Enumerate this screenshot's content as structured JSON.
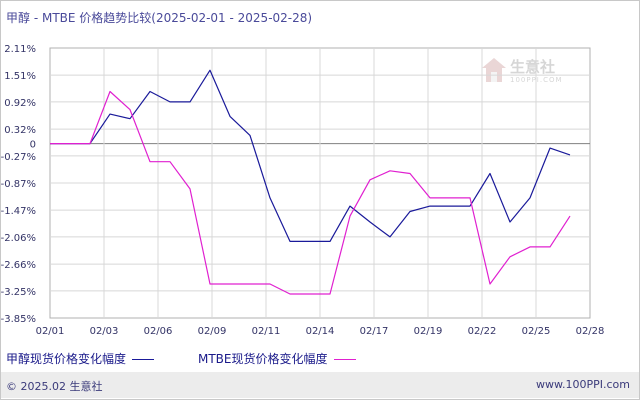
{
  "title": "甲醇 - MTBE 价格趋势比较(2025-02-01 - 2025-02-28)",
  "footer": {
    "copyright": "© 2025.02 生意社",
    "site": "www.100PPI.com"
  },
  "watermark": {
    "brand": "生意社",
    "sub": "100PPI.COM"
  },
  "colors": {
    "series1": "#1a1a9a",
    "series2": "#e020d0",
    "grid": "#d8d8d8",
    "axis_text": "#333366"
  },
  "chart_data": {
    "type": "line",
    "title": "甲醇 - MTBE 价格趋势比较(2025-02-01 - 2025-02-28)",
    "xlabel": "",
    "ylabel": "",
    "x_tick_labels": [
      "02/01",
      "02/03",
      "02/06",
      "02/09",
      "02/11",
      "02/14",
      "02/17",
      "02/19",
      "02/22",
      "02/25",
      "02/28"
    ],
    "y_tick_labels": [
      "2.11%",
      "1.51%",
      "0.92%",
      "0.32%",
      "0",
      "-0.27%",
      "-0.87%",
      "-1.47%",
      "-2.06%",
      "-2.66%",
      "-3.25%",
      "-3.85%"
    ],
    "y_tick_values": [
      2.11,
      1.51,
      0.92,
      0.32,
      0,
      -0.27,
      -0.87,
      -1.47,
      -2.06,
      -2.66,
      -3.25,
      -3.85
    ],
    "ylim": [
      -3.85,
      2.11
    ],
    "x_range_days": [
      1,
      28
    ],
    "grid": true,
    "legend_position": "bottom-left",
    "series": [
      {
        "name": "甲醇现货价格变化幅度",
        "points": [
          {
            "day": 1,
            "value": 0
          },
          {
            "day": 2,
            "value": 0
          },
          {
            "day": 3,
            "value": 0
          },
          {
            "day": 4,
            "value": 0.65
          },
          {
            "day": 5,
            "value": 0.55
          },
          {
            "day": 6,
            "value": 1.15
          },
          {
            "day": 7,
            "value": 0.92
          },
          {
            "day": 8,
            "value": 0.92
          },
          {
            "day": 9,
            "value": 1.62
          },
          {
            "day": 10,
            "value": 0.6
          },
          {
            "day": 11,
            "value": 0.18
          },
          {
            "day": 12,
            "value": -1.2
          },
          {
            "day": 13,
            "value": -2.16
          },
          {
            "day": 14,
            "value": -2.16
          },
          {
            "day": 15,
            "value": -2.16
          },
          {
            "day": 16,
            "value": -1.38
          },
          {
            "day": 17,
            "value": -1.73
          },
          {
            "day": 18,
            "value": -2.06
          },
          {
            "day": 19,
            "value": -1.5
          },
          {
            "day": 20,
            "value": -1.38
          },
          {
            "day": 21,
            "value": -1.38
          },
          {
            "day": 22,
            "value": -1.38
          },
          {
            "day": 23,
            "value": -0.66
          },
          {
            "day": 24,
            "value": -1.73
          },
          {
            "day": 25,
            "value": -1.2
          },
          {
            "day": 26,
            "value": -0.1
          },
          {
            "day": 27,
            "value": -0.25
          }
        ]
      },
      {
        "name": "MTBE现货价格变化幅度",
        "points": [
          {
            "day": 1,
            "value": 0
          },
          {
            "day": 2,
            "value": 0
          },
          {
            "day": 3,
            "value": 0
          },
          {
            "day": 4,
            "value": 1.15
          },
          {
            "day": 5,
            "value": 0.75
          },
          {
            "day": 6,
            "value": -0.4
          },
          {
            "day": 7,
            "value": -0.4
          },
          {
            "day": 8,
            "value": -1.0
          },
          {
            "day": 9,
            "value": -3.1
          },
          {
            "day": 10,
            "value": -3.1
          },
          {
            "day": 11,
            "value": -3.1
          },
          {
            "day": 12,
            "value": -3.1
          },
          {
            "day": 13,
            "value": -3.32
          },
          {
            "day": 14,
            "value": -3.32
          },
          {
            "day": 15,
            "value": -3.32
          },
          {
            "day": 16,
            "value": -1.6
          },
          {
            "day": 17,
            "value": -0.8
          },
          {
            "day": 18,
            "value": -0.6
          },
          {
            "day": 19,
            "value": -0.66
          },
          {
            "day": 20,
            "value": -1.2
          },
          {
            "day": 21,
            "value": -1.2
          },
          {
            "day": 22,
            "value": -1.2
          },
          {
            "day": 23,
            "value": -3.1
          },
          {
            "day": 24,
            "value": -2.5
          },
          {
            "day": 25,
            "value": -2.28
          },
          {
            "day": 26,
            "value": -2.28
          },
          {
            "day": 27,
            "value": -1.6
          }
        ]
      }
    ]
  }
}
